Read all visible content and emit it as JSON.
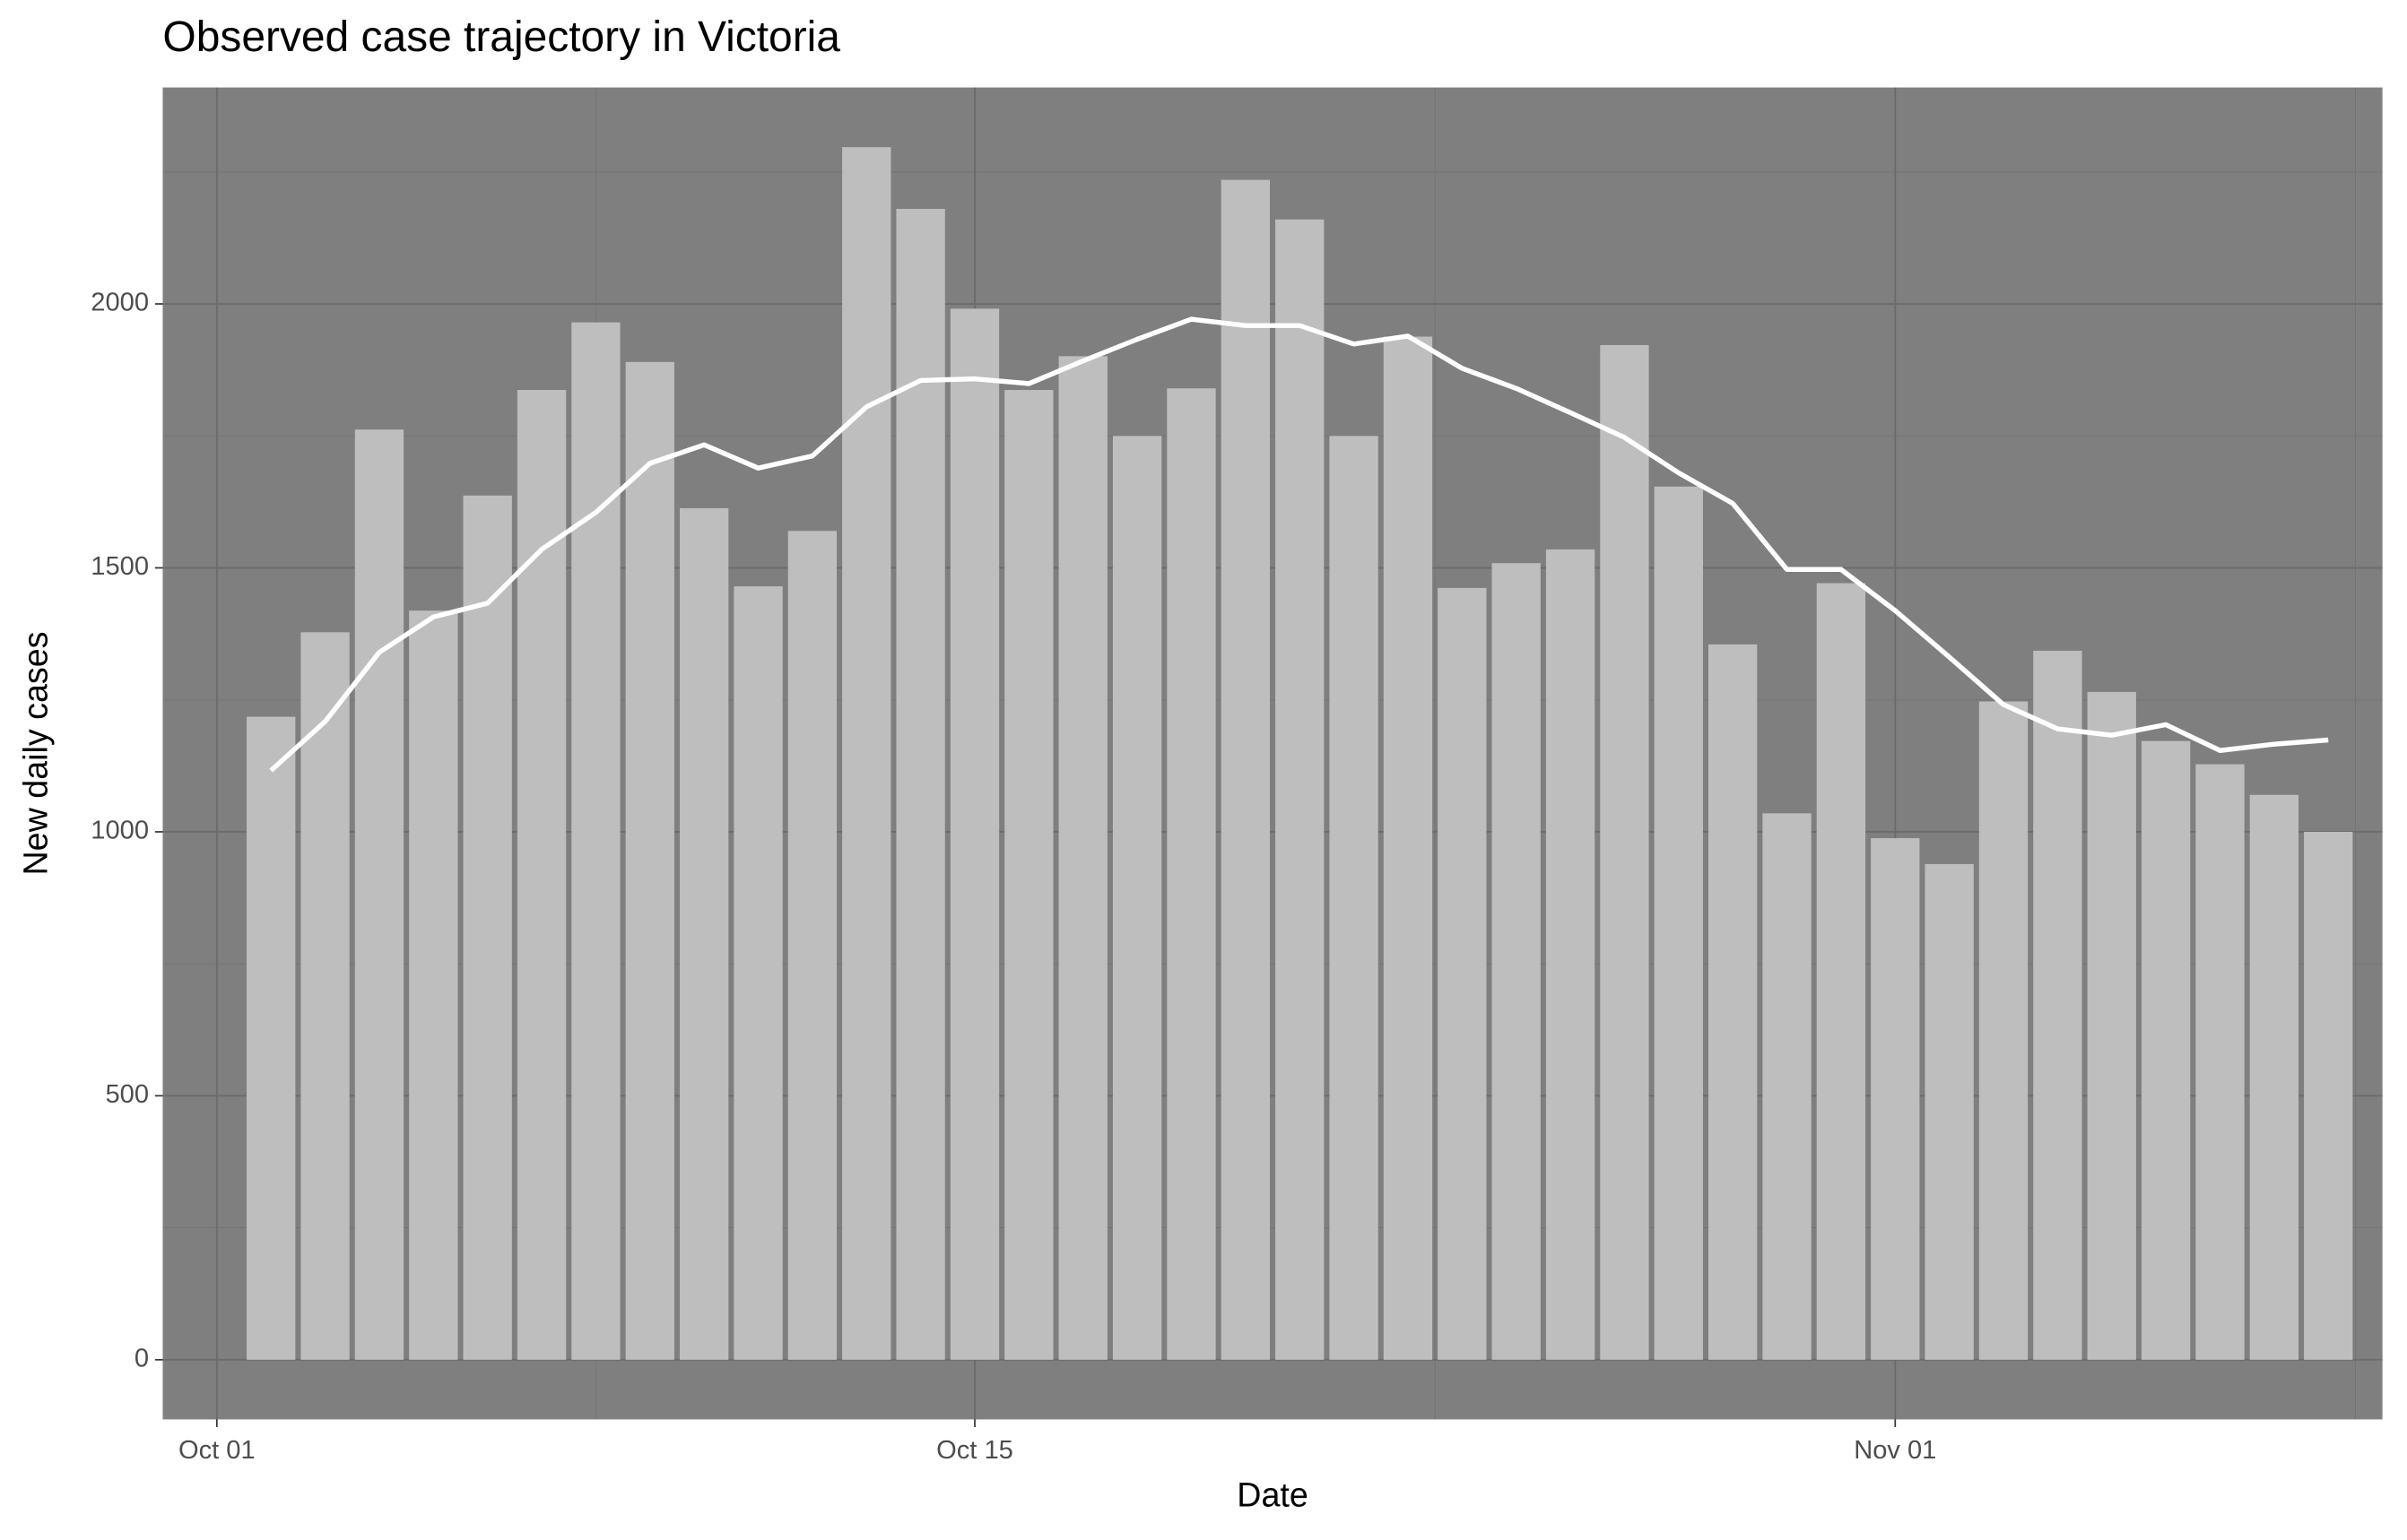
{
  "chart_data": {
    "type": "bar",
    "title": "Observed case trajectory in Victoria",
    "x_label": "Date",
    "y_label": "New daily cases",
    "x": [
      "10-02",
      "10-03",
      "10-04",
      "10-05",
      "10-06",
      "10-07",
      "10-08",
      "10-09",
      "10-10",
      "10-11",
      "10-12",
      "10-13",
      "10-14",
      "10-15",
      "10-16",
      "10-17",
      "10-18",
      "10-19",
      "10-20",
      "10-21",
      "10-22",
      "10-23",
      "10-24",
      "10-25",
      "10-26",
      "10-27",
      "10-28",
      "10-29",
      "10-30",
      "10-31",
      "11-01",
      "11-02",
      "11-03",
      "11-04",
      "11-05",
      "11-06",
      "11-07",
      "11-08",
      "11-09"
    ],
    "series": [
      {
        "type": "bar",
        "color": "#bebebe",
        "values": [
          1218,
          1378,
          1762,
          1419,
          1637,
          1837,
          1965,
          1890,
          1613,
          1465,
          1570,
          2297,
          2180,
          1991,
          1837,
          1901,
          1750,
          1840,
          2235,
          2160,
          1750,
          1938,
          1462,
          1509,
          1535,
          1922,
          1654,
          1355,
          1035,
          1471,
          988,
          939,
          1247,
          1343,
          1265,
          1172,
          1128,
          1070,
          1000
        ]
      },
      {
        "type": "line",
        "color": "#ffffff",
        "values": [
          1116,
          1209,
          1340,
          1407,
          1433,
          1535,
          1605,
          1698,
          1733,
          1689,
          1712,
          1805,
          1855,
          1858,
          1849,
          1892,
          1933,
          1971,
          1959,
          1959,
          1924,
          1939,
          1878,
          1840,
          1794,
          1747,
          1680,
          1622,
          1497,
          1497,
          1419,
          1331,
          1241,
          1195,
          1183,
          1203,
          1154,
          1166,
          1174
        ]
      }
    ],
    "xlim": [
      "09-30",
      "11-10"
    ],
    "xticks": [
      {
        "value": "10-01",
        "label": "Oct 01"
      },
      {
        "value": "10-15",
        "label": "Oct 15"
      },
      {
        "value": "11-01",
        "label": "Nov 01"
      }
    ],
    "ylim": [
      -113,
      2410
    ],
    "yticks": [
      0,
      500,
      1000,
      1500,
      2000
    ],
    "grid": true,
    "panel_color": "#7f7f7f"
  }
}
